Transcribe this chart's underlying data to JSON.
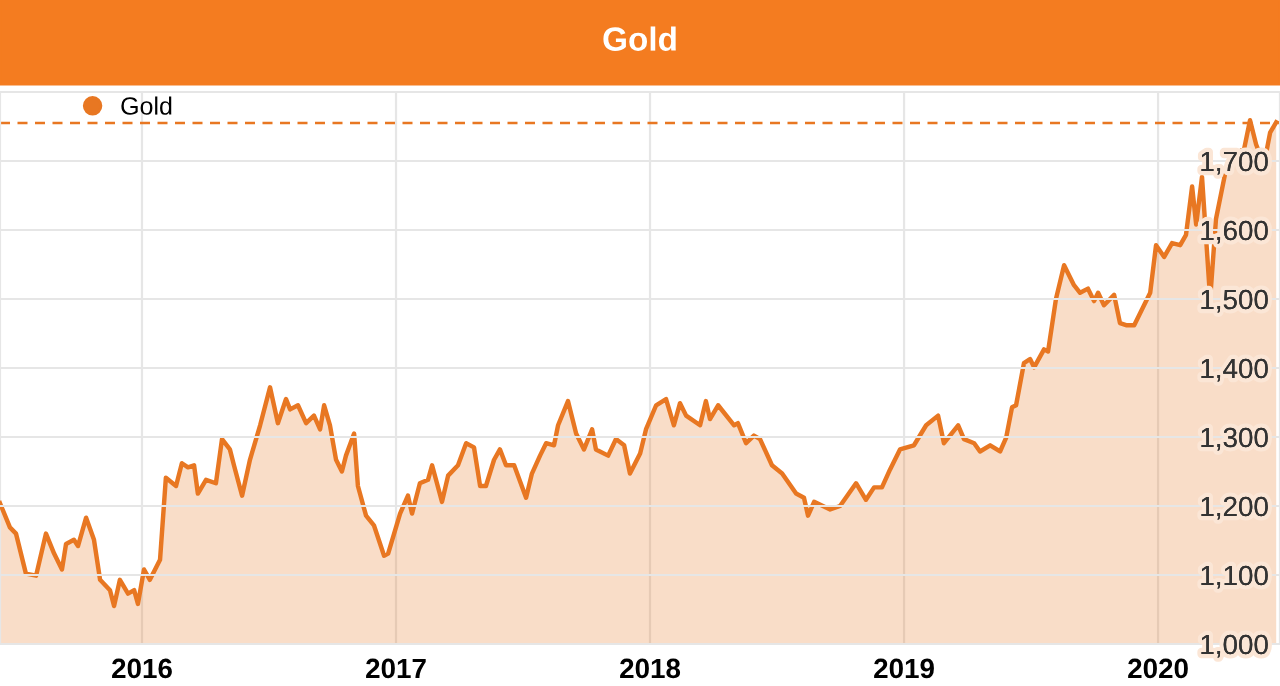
{
  "chart_data": {
    "type": "area",
    "title": "Gold",
    "series": [
      {
        "name": "Gold",
        "color": "#e87722",
        "x": [
          2015.441,
          2015.48,
          2015.504,
          2015.543,
          2015.583,
          2015.622,
          2015.654,
          2015.685,
          2015.701,
          2015.732,
          2015.748,
          2015.78,
          2015.811,
          2015.835,
          2015.874,
          2015.89,
          2015.913,
          2015.945,
          2015.969,
          2015.984,
          2016.008,
          2016.031,
          2016.071,
          2016.094,
          2016.134,
          2016.157,
          2016.181,
          2016.205,
          2016.22,
          2016.252,
          2016.291,
          2016.315,
          2016.346,
          2016.362,
          2016.394,
          2016.425,
          2016.465,
          2016.504,
          2016.535,
          2016.567,
          2016.583,
          2016.614,
          2016.646,
          2016.677,
          2016.701,
          2016.717,
          2016.74,
          2016.764,
          2016.787,
          2016.803,
          2016.835,
          2016.85,
          2016.882,
          2016.913,
          2016.953,
          2016.969,
          2017.016,
          2017.047,
          2017.063,
          2017.094,
          2017.126,
          2017.142,
          2017.181,
          2017.205,
          2017.244,
          2017.276,
          2017.307,
          2017.331,
          2017.354,
          2017.386,
          2017.409,
          2017.433,
          2017.465,
          2017.512,
          2017.535,
          2017.567,
          2017.591,
          2017.622,
          2017.638,
          2017.677,
          2017.709,
          2017.74,
          2017.772,
          2017.787,
          2017.835,
          2017.866,
          2017.898,
          2017.921,
          2017.961,
          2017.984,
          2018.024,
          2018.063,
          2018.094,
          2018.118,
          2018.142,
          2018.197,
          2018.22,
          2018.236,
          2018.268,
          2018.331,
          2018.346,
          2018.378,
          2018.409,
          2018.433,
          2018.48,
          2018.52,
          2018.575,
          2018.606,
          2018.622,
          2018.646,
          2018.709,
          2018.748,
          2018.811,
          2018.85,
          2018.882,
          2018.913,
          2018.945,
          2018.984,
          2019.039,
          2019.087,
          2019.134,
          2019.157,
          2019.213,
          2019.236,
          2019.276,
          2019.299,
          2019.339,
          2019.378,
          2019.402,
          2019.425,
          2019.441,
          2019.472,
          2019.496,
          2019.512,
          2019.551,
          2019.567,
          2019.598,
          2019.63,
          2019.669,
          2019.693,
          2019.724,
          2019.748,
          2019.764,
          2019.787,
          2019.827,
          2019.85,
          2019.874,
          2019.906,
          2019.937,
          2019.969,
          2019.992,
          2020.024,
          2020.055,
          2020.087,
          2020.11,
          2020.134,
          2020.15,
          2020.173,
          2020.205,
          2020.228,
          2020.268,
          2020.299,
          2020.339,
          2020.362,
          2020.386,
          2020.417,
          2020.441,
          2020.465
        ],
        "values": [
          1204,
          1169,
          1160,
          1102,
          1099,
          1160,
          1131,
          1108,
          1145,
          1151,
          1142,
          1183,
          1151,
          1093,
          1078,
          1055,
          1093,
          1073,
          1078,
          1058,
          1108,
          1093,
          1122,
          1241,
          1229,
          1262,
          1256,
          1259,
          1218,
          1238,
          1233,
          1297,
          1282,
          1259,
          1215,
          1267,
          1317,
          1372,
          1320,
          1355,
          1340,
          1346,
          1320,
          1331,
          1311,
          1346,
          1317,
          1267,
          1250,
          1273,
          1305,
          1229,
          1186,
          1172,
          1128,
          1131,
          1189,
          1215,
          1189,
          1233,
          1238,
          1259,
          1206,
          1244,
          1259,
          1291,
          1285,
          1229,
          1229,
          1267,
          1282,
          1259,
          1259,
          1212,
          1247,
          1273,
          1291,
          1288,
          1317,
          1352,
          1305,
          1282,
          1311,
          1282,
          1273,
          1297,
          1288,
          1247,
          1276,
          1311,
          1346,
          1355,
          1317,
          1349,
          1331,
          1317,
          1352,
          1326,
          1346,
          1317,
          1320,
          1291,
          1302,
          1297,
          1259,
          1247,
          1218,
          1212,
          1186,
          1206,
          1195,
          1200,
          1233,
          1209,
          1227,
          1227,
          1253,
          1282,
          1288,
          1317,
          1331,
          1291,
          1317,
          1297,
          1291,
          1279,
          1288,
          1279,
          1299,
          1343,
          1346,
          1407,
          1413,
          1401,
          1427,
          1424,
          1500,
          1549,
          1520,
          1509,
          1515,
          1497,
          1509,
          1491,
          1506,
          1465,
          1462,
          1462,
          1485,
          1509,
          1578,
          1561,
          1581,
          1578,
          1593,
          1663,
          1608,
          1677,
          1500,
          1616,
          1689,
          1709,
          1718,
          1759,
          1724,
          1695,
          1741,
          1756
        ]
      }
    ],
    "xlim": [
      2015.441,
      2020.48
    ],
    "xticks": [
      2016,
      2017,
      2018,
      2019,
      2020
    ],
    "ylim": [
      1000,
      1800
    ],
    "yticks": [
      {
        "value": 1000,
        "label": "1,000"
      },
      {
        "value": 1100,
        "label": "1,100"
      },
      {
        "value": 1200,
        "label": "1,200"
      },
      {
        "value": 1300,
        "label": "1,300"
      },
      {
        "value": 1400,
        "label": "1,400"
      },
      {
        "value": 1500,
        "label": "1,500"
      },
      {
        "value": 1600,
        "label": "1,600"
      },
      {
        "value": 1700,
        "label": "1,700"
      }
    ],
    "ref_lines": [
      {
        "axis": "y",
        "value": 1755,
        "color": "#e87722",
        "line_style": "dashed"
      }
    ],
    "grid": true,
    "legend": "top left",
    "marker": "none",
    "line_style": "solid"
  }
}
